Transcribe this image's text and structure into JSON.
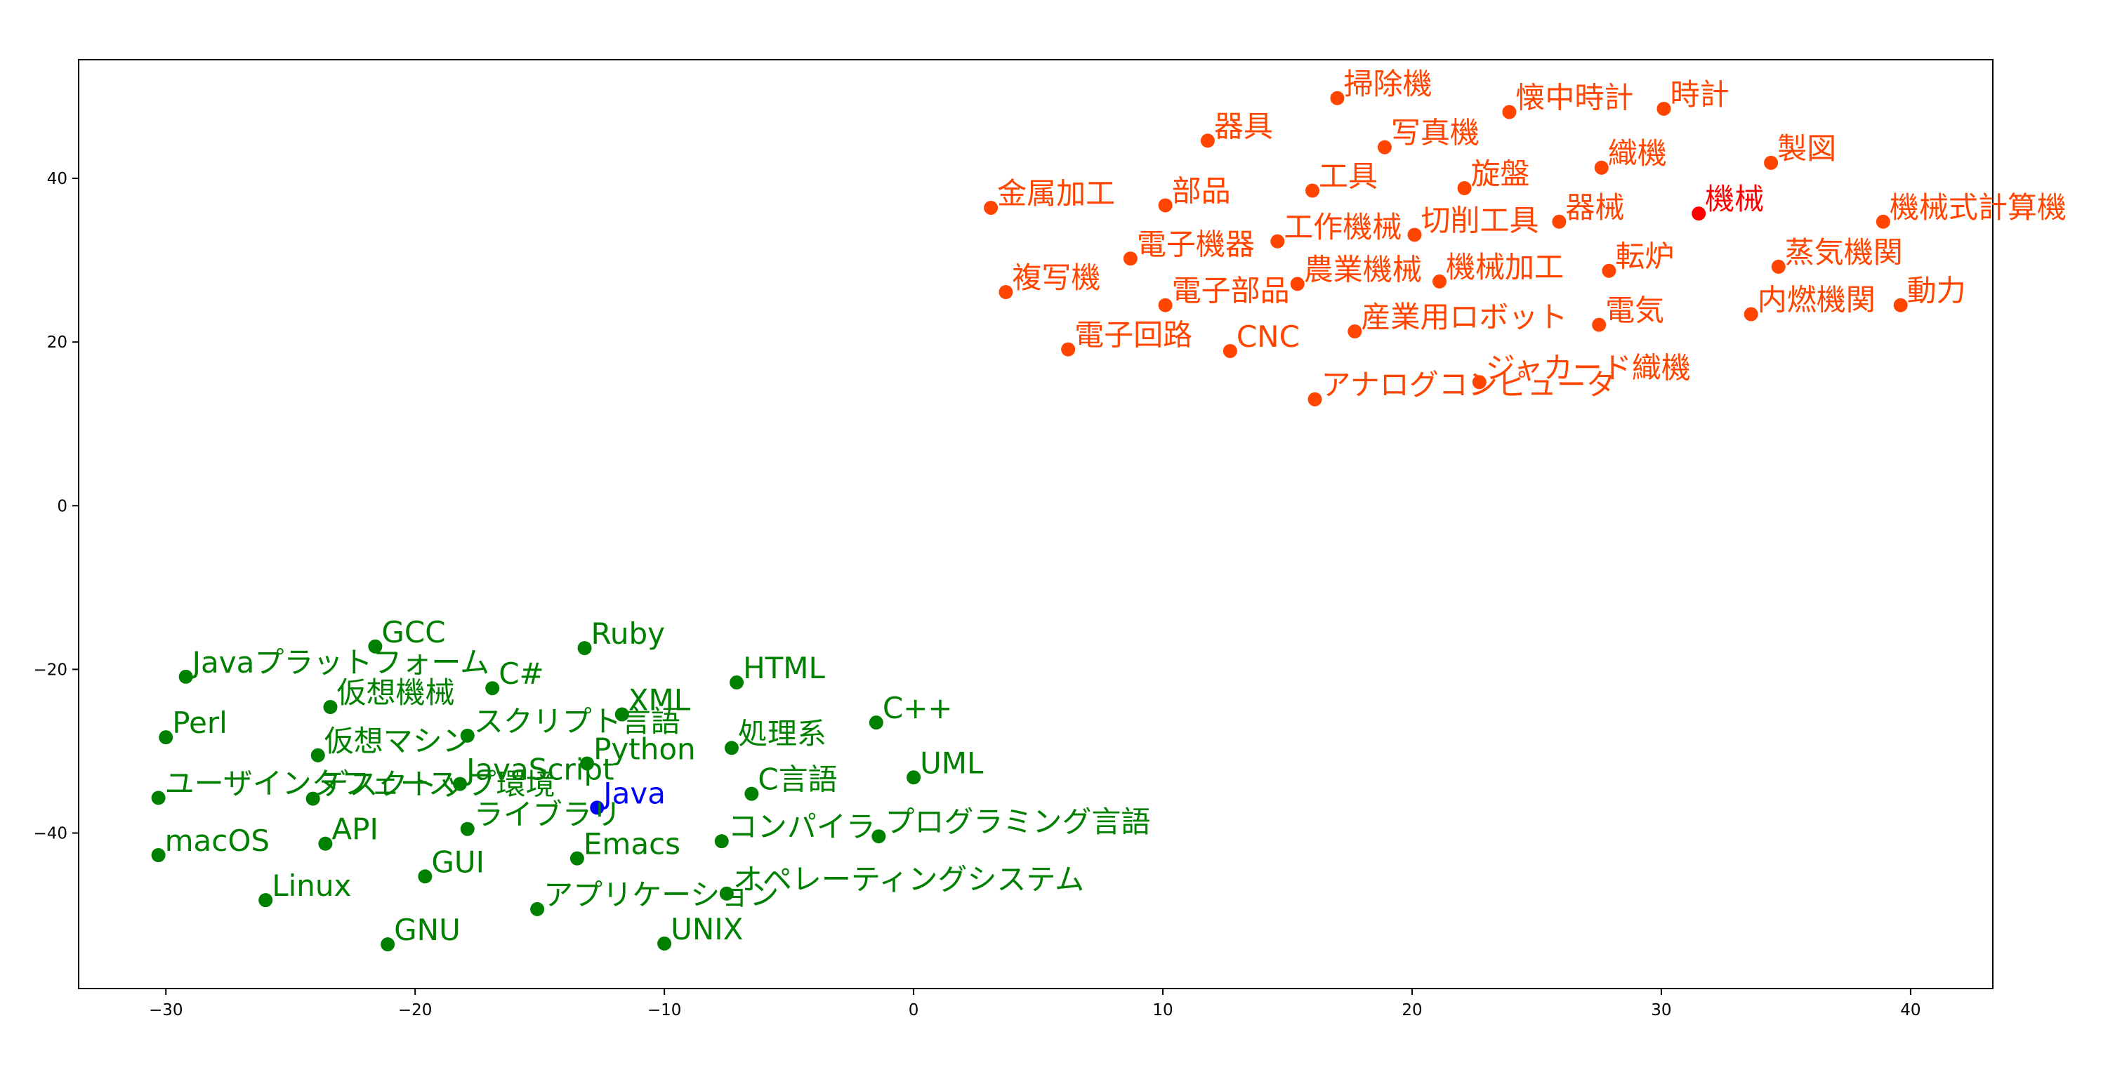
{
  "chart_data": {
    "type": "scatter",
    "title": "",
    "xlabel": "",
    "ylabel": "",
    "xlim": [
      -33.5,
      43.3
    ],
    "ylim": [
      -59,
      54.5
    ],
    "grid": false,
    "legend": "none",
    "x_ticks": [
      -30,
      -20,
      -10,
      0,
      10,
      20,
      30,
      40
    ],
    "y_ticks": [
      40,
      20,
      0,
      -20,
      -40
    ],
    "x_tick_labels": [
      "−30",
      "−20",
      "−10",
      "0",
      "10",
      "20",
      "30",
      "40"
    ],
    "y_tick_labels": [
      "40",
      "20",
      "0",
      "−20",
      "−40"
    ],
    "colors": {
      "green": "#008000",
      "orange": "#ff4500",
      "red": "#ff0000",
      "blue": "#0000ff"
    },
    "series": [
      {
        "color": "#ff4500",
        "points": [
          {
            "x": 17.0,
            "y": 49.8,
            "label": "掃除機"
          },
          {
            "x": 23.9,
            "y": 48.1,
            "label": "懐中時計"
          },
          {
            "x": 30.1,
            "y": 48.5,
            "label": "時計"
          },
          {
            "x": 11.8,
            "y": 44.6,
            "label": "器具"
          },
          {
            "x": 18.9,
            "y": 43.8,
            "label": "写真機"
          },
          {
            "x": 27.6,
            "y": 41.3,
            "label": "織機"
          },
          {
            "x": 34.4,
            "y": 41.9,
            "label": "製図"
          },
          {
            "x": 3.1,
            "y": 36.4,
            "label": "金属加工"
          },
          {
            "x": 10.1,
            "y": 36.7,
            "label": "部品"
          },
          {
            "x": 16.0,
            "y": 38.5,
            "label": "工具"
          },
          {
            "x": 22.1,
            "y": 38.8,
            "label": "旋盤"
          },
          {
            "x": 25.9,
            "y": 34.7,
            "label": "器械"
          },
          {
            "x": 14.6,
            "y": 32.3,
            "label": "工作機械"
          },
          {
            "x": 20.1,
            "y": 33.1,
            "label": "切削工具"
          },
          {
            "x": 38.9,
            "y": 34.7,
            "label": "機械式計算機"
          },
          {
            "x": 8.7,
            "y": 30.2,
            "label": "電子機器"
          },
          {
            "x": 27.9,
            "y": 28.7,
            "label": "転炉"
          },
          {
            "x": 34.7,
            "y": 29.2,
            "label": "蒸気機関"
          },
          {
            "x": 3.7,
            "y": 26.1,
            "label": "複写機"
          },
          {
            "x": 15.4,
            "y": 27.1,
            "label": "農業機械"
          },
          {
            "x": 21.1,
            "y": 27.4,
            "label": "機械加工"
          },
          {
            "x": 10.1,
            "y": 24.5,
            "label": "電子部品"
          },
          {
            "x": 27.5,
            "y": 22.1,
            "label": "電気"
          },
          {
            "x": 33.6,
            "y": 23.4,
            "label": "内燃機関"
          },
          {
            "x": 39.6,
            "y": 24.5,
            "label": "動力"
          },
          {
            "x": 6.2,
            "y": 19.1,
            "label": "電子回路"
          },
          {
            "x": 12.7,
            "y": 18.9,
            "label": "CNC"
          },
          {
            "x": 17.7,
            "y": 21.3,
            "label": "産業用ロボット"
          },
          {
            "x": 22.7,
            "y": 15.1,
            "label": "ジャカード織機"
          },
          {
            "x": 16.1,
            "y": 13.0,
            "label": "アナログコンピュータ"
          }
        ]
      },
      {
        "color": "#ff0000",
        "points": [
          {
            "x": 31.5,
            "y": 35.7,
            "label": "機械"
          }
        ]
      },
      {
        "color": "#008000",
        "points": [
          {
            "x": -21.6,
            "y": -17.2,
            "label": "GCC"
          },
          {
            "x": -13.2,
            "y": -17.4,
            "label": "Ruby"
          },
          {
            "x": -29.2,
            "y": -20.9,
            "label": "Javaプラットフォーム"
          },
          {
            "x": -16.9,
            "y": -22.3,
            "label": "C#"
          },
          {
            "x": -7.1,
            "y": -21.6,
            "label": "HTML"
          },
          {
            "x": -23.4,
            "y": -24.6,
            "label": "仮想機械"
          },
          {
            "x": -11.7,
            "y": -25.5,
            "label": "XML"
          },
          {
            "x": -1.5,
            "y": -26.5,
            "label": "C++"
          },
          {
            "x": -30.0,
            "y": -28.3,
            "label": "Perl"
          },
          {
            "x": -17.9,
            "y": -28.1,
            "label": "スクリプト言語"
          },
          {
            "x": -7.3,
            "y": -29.6,
            "label": "処理系"
          },
          {
            "x": -23.9,
            "y": -30.5,
            "label": "仮想マシン"
          },
          {
            "x": -13.1,
            "y": -31.5,
            "label": "Python"
          },
          {
            "x": 0.0,
            "y": -33.2,
            "label": "UML"
          },
          {
            "x": -18.2,
            "y": -34.0,
            "label": "JavaScript"
          },
          {
            "x": -6.5,
            "y": -35.2,
            "label": "C言語"
          },
          {
            "x": -30.3,
            "y": -35.7,
            "label": "ユーザインタフェース"
          },
          {
            "x": -24.1,
            "y": -35.8,
            "label": "デスクトップ環境"
          },
          {
            "x": -17.9,
            "y": -39.5,
            "label": "ライブラリ"
          },
          {
            "x": -7.7,
            "y": -41.0,
            "label": "コンパイラ"
          },
          {
            "x": -1.4,
            "y": -40.4,
            "label": "プログラミング言語"
          },
          {
            "x": -23.6,
            "y": -41.3,
            "label": "API"
          },
          {
            "x": -30.3,
            "y": -42.7,
            "label": "macOS"
          },
          {
            "x": -13.5,
            "y": -43.1,
            "label": "Emacs"
          },
          {
            "x": -19.6,
            "y": -45.3,
            "label": "GUI"
          },
          {
            "x": -7.5,
            "y": -47.4,
            "label": "オペレーティングシステム"
          },
          {
            "x": -26.0,
            "y": -48.2,
            "label": "Linux"
          },
          {
            "x": -15.1,
            "y": -49.3,
            "label": "アプリケーション"
          },
          {
            "x": -21.1,
            "y": -53.6,
            "label": "GNU"
          },
          {
            "x": -10.0,
            "y": -53.5,
            "label": "UNIX"
          }
        ]
      },
      {
        "color": "#0000ff",
        "points": [
          {
            "x": -12.7,
            "y": -36.9,
            "label": "Java"
          }
        ]
      }
    ]
  }
}
